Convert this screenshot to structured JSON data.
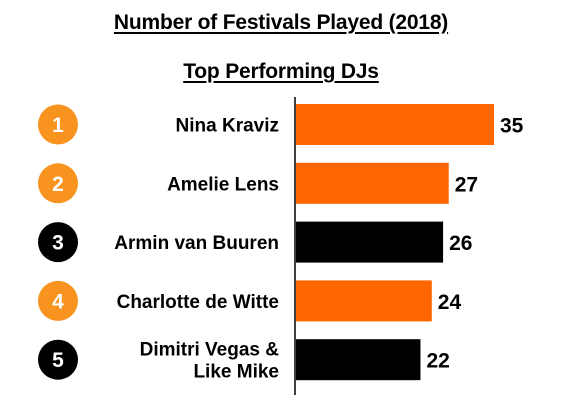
{
  "chart_data": {
    "type": "bar",
    "orientation": "horizontal",
    "title": "Number of Festivals Played (2018)",
    "subtitle": "Top Performing DJs",
    "categories": [
      "Nina Kraviz",
      "Amelie Lens",
      "Armin van Buuren",
      "Charlotte de Witte",
      "Dimitri Vegas & Like Mike"
    ],
    "category_lines": [
      [
        "Nina Kraviz"
      ],
      [
        "Amelie Lens"
      ],
      [
        "Armin van Buuren"
      ],
      [
        "Charlotte de Witte"
      ],
      [
        "Dimitri Vegas &",
        "Like Mike"
      ]
    ],
    "ranks": [
      "1",
      "2",
      "3",
      "4",
      "5"
    ],
    "values": [
      35,
      27,
      26,
      24,
      22
    ],
    "bar_colors": [
      "#ff6600",
      "#ff6600",
      "#000000",
      "#ff6600",
      "#000000"
    ],
    "rank_colors": [
      "#f7931e",
      "#f7931e",
      "#000000",
      "#f7931e",
      "#000000"
    ],
    "xlim": [
      0,
      35
    ],
    "grid": false,
    "legend": "none"
  }
}
